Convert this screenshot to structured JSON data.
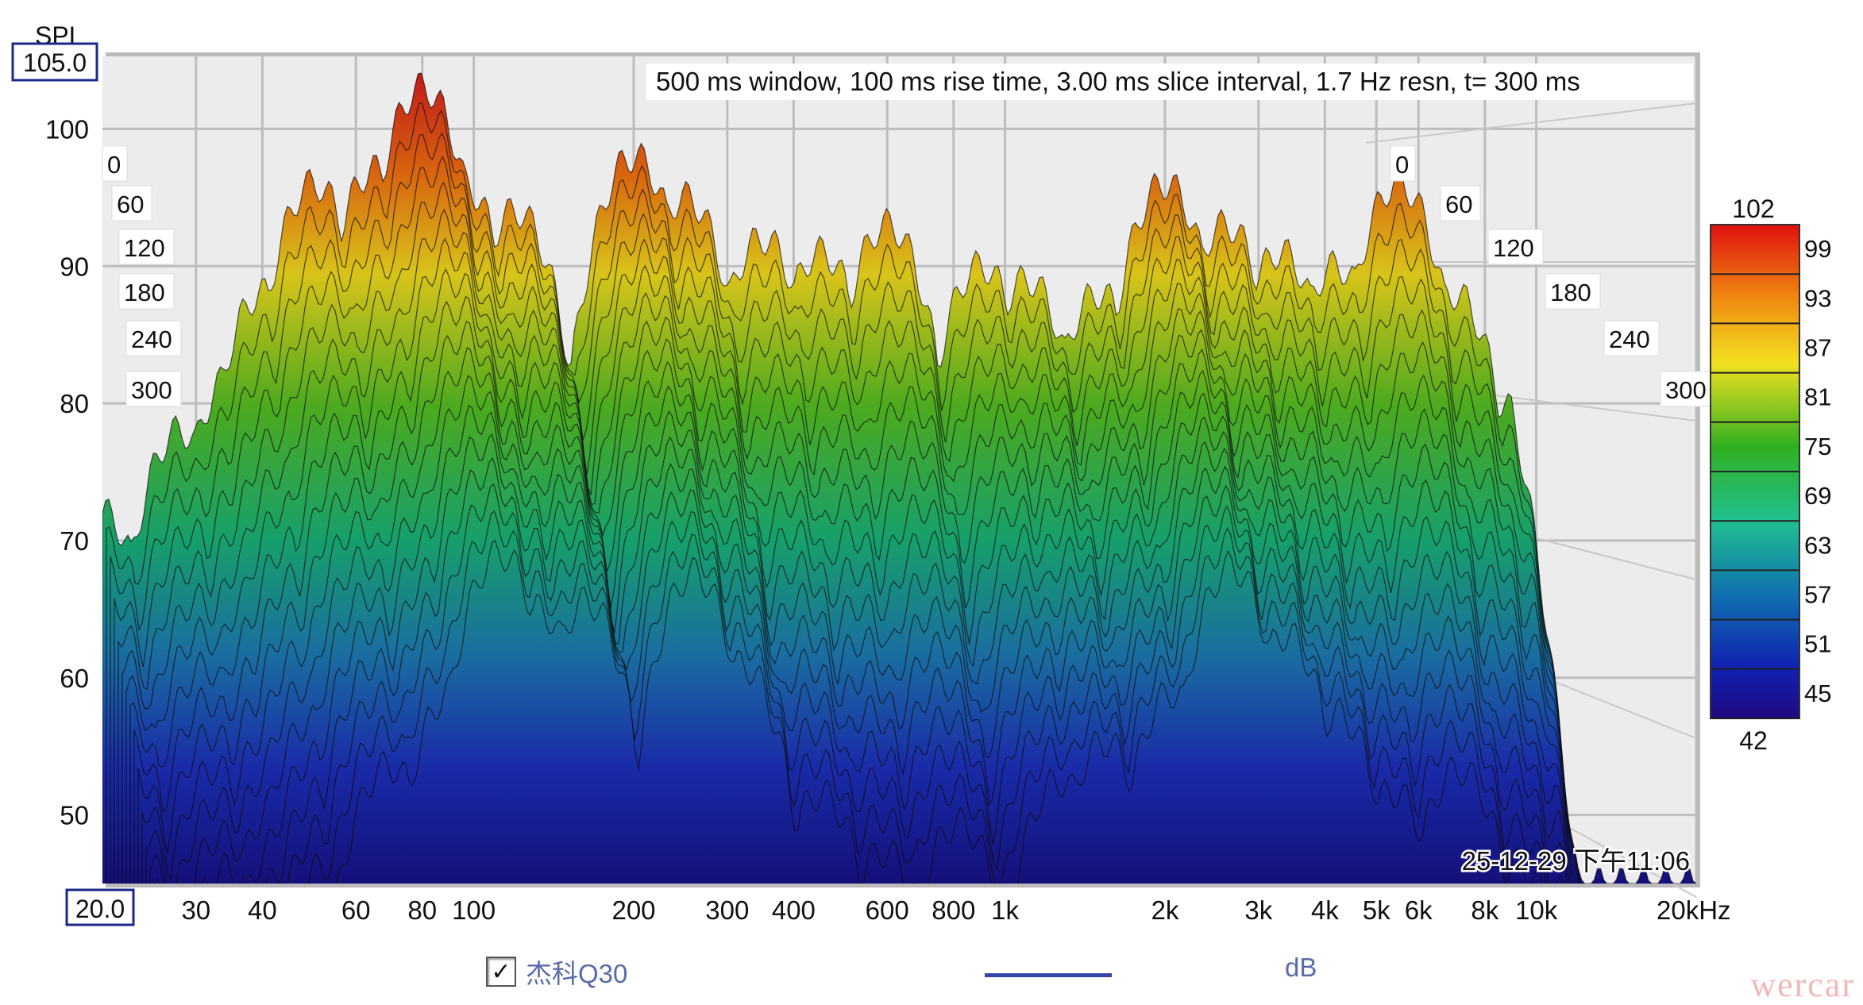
{
  "chart_data": {
    "type": "area",
    "subtype": "waterfall",
    "title": "500 ms window, 100 ms rise time, 3.00 ms slice interval, 1.7 Hz resn, t= 300 ms",
    "ylabel": "SPL",
    "y_top_value": "105.0",
    "x_start_value": "20.0",
    "ylim": [
      45,
      105
    ],
    "xlim": [
      20,
      20000
    ],
    "xscale": "log",
    "y_ticks": [
      "100",
      "90",
      "80",
      "70",
      "60",
      "50"
    ],
    "y_tick_values": [
      100,
      90,
      80,
      70,
      60,
      50
    ],
    "x_ticks": [
      "30",
      "40",
      "60",
      "80",
      "100",
      "200",
      "300",
      "400",
      "600",
      "800",
      "1k",
      "2k",
      "3k",
      "4k",
      "5k",
      "6k",
      "8k",
      "10k",
      "20kHz"
    ],
    "x_tick_values": [
      30,
      40,
      60,
      80,
      100,
      200,
      300,
      400,
      600,
      800,
      1000,
      2000,
      3000,
      4000,
      5000,
      6000,
      8000,
      10000,
      20000
    ],
    "time_ticks": [
      "0",
      "60",
      "120",
      "180",
      "240",
      "300"
    ],
    "time_unit": "ms",
    "front_slice_peaks": [
      [
        20,
        72
      ],
      [
        28,
        78
      ],
      [
        35,
        82
      ],
      [
        40,
        88
      ],
      [
        50,
        96
      ],
      [
        65,
        97
      ],
      [
        80,
        103
      ],
      [
        95,
        96
      ],
      [
        120,
        94
      ],
      [
        200,
        98
      ],
      [
        250,
        95
      ],
      [
        350,
        92
      ],
      [
        450,
        91
      ],
      [
        600,
        93
      ],
      [
        900,
        90
      ],
      [
        1100,
        89
      ],
      [
        1500,
        88
      ],
      [
        2000,
        96
      ],
      [
        2600,
        93
      ],
      [
        3300,
        91
      ],
      [
        4200,
        90
      ],
      [
        5500,
        96
      ],
      [
        7000,
        88
      ],
      [
        8500,
        80
      ]
    ],
    "colorbar": {
      "max_label": "102",
      "min_label": "42",
      "labels": [
        "99",
        "93",
        "87",
        "81",
        "75",
        "69",
        "63",
        "57",
        "51",
        "45"
      ],
      "range": [
        42,
        102
      ]
    },
    "timestamp": "25-12-29 下午11:06",
    "legend": [
      {
        "name": "杰科Q30",
        "checked": true,
        "color": "#3344aa",
        "unit": "dB"
      }
    ],
    "grid": true
  },
  "legend_check": "✓",
  "watermark": "wercar"
}
